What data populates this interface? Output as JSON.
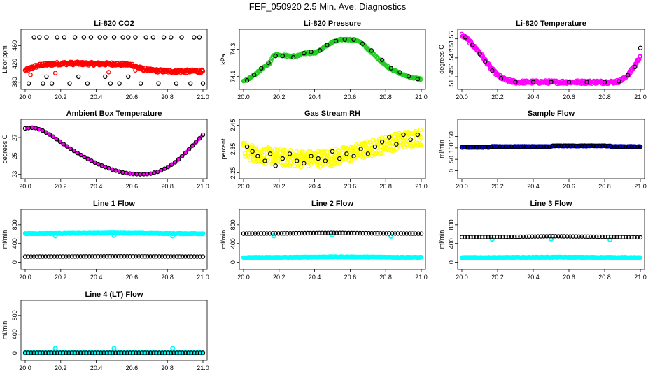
{
  "figure": {
    "title": "FEF_050920  2.5 Min. Ave. Diagnostics"
  },
  "colors": {
    "red": "#ff0000",
    "green": "#22cc22",
    "magenta": "#ff00ff",
    "yellow": "#ffff00",
    "blue": "#0000cc",
    "cyan": "#00ffff",
    "black": "#000000"
  },
  "chart_data": [
    {
      "id": "co2",
      "type": "scatter",
      "title": "Li-820 CO2",
      "ylabel": "Licor ppm",
      "xlim": [
        20.0,
        21.0
      ],
      "ylim": [
        372,
        488
      ],
      "xticks": [
        20.0,
        20.2,
        20.4,
        20.6,
        20.8,
        21.0
      ],
      "xtick_labels": [
        "20.0",
        "20.2",
        "20.4",
        "20.6",
        "20.8",
        "21.0"
      ],
      "yticks": [
        380,
        420,
        460
      ],
      "ytick_labels": [
        "380",
        "420",
        "460"
      ],
      "series": [
        {
          "style": "red-dense",
          "color": "red",
          "x": [
            20.0,
            20.05,
            20.1,
            20.2,
            20.3,
            20.4,
            20.5,
            20.6,
            20.65,
            20.7,
            20.8,
            20.9,
            21.0
          ],
          "y": [
            405,
            414,
            418,
            421,
            421,
            420,
            420,
            418,
            410,
            406,
            404,
            404,
            404
          ]
        },
        {
          "style": "black-open",
          "color": "black",
          "x": [
            20.05,
            20.08,
            20.12,
            20.18,
            20.22,
            20.28,
            20.33,
            20.37,
            20.42,
            20.45,
            20.5,
            20.55,
            20.58,
            20.62,
            20.68,
            20.72,
            20.78,
            20.82,
            20.88,
            20.95,
            20.98,
            20.02,
            20.1,
            20.15,
            20.25,
            20.35,
            20.48,
            20.53,
            20.65,
            20.75,
            20.85,
            20.93,
            21.0,
            20.12,
            20.3,
            20.45,
            20.58
          ],
          "y": [
            478,
            478,
            478,
            478,
            478,
            478,
            478,
            478,
            478,
            478,
            478,
            478,
            478,
            478,
            478,
            478,
            478,
            478,
            478,
            478,
            478,
            377,
            377,
            377,
            377,
            377,
            377,
            377,
            377,
            377,
            377,
            377,
            377,
            392,
            392,
            392,
            392
          ]
        }
      ]
    },
    {
      "id": "pressure",
      "type": "scatter",
      "title": "Li-820 Pressure",
      "ylabel": "kPa",
      "xlim": [
        20.0,
        21.0
      ],
      "ylim": [
        74.03,
        74.42
      ],
      "xticks": [
        20.0,
        20.2,
        20.4,
        20.6,
        20.8,
        21.0
      ],
      "xtick_labels": [
        "20.0",
        "20.2",
        "20.4",
        "20.6",
        "20.8",
        "21.0"
      ],
      "yticks": [
        74.1,
        74.3
      ],
      "ytick_labels": [
        "74.1",
        "74.3"
      ],
      "series": [
        {
          "style": "green-dense",
          "color": "green",
          "x": [
            20.0,
            20.05,
            20.1,
            20.15,
            20.17,
            20.2,
            20.25,
            20.3,
            20.33,
            20.36,
            20.4,
            20.45,
            20.5,
            20.55,
            20.6,
            20.65,
            20.7,
            20.75,
            20.8,
            20.85,
            20.9,
            20.95,
            21.0
          ],
          "y": [
            74.06,
            74.1,
            74.15,
            74.2,
            74.26,
            74.26,
            74.25,
            74.25,
            74.27,
            74.27,
            74.27,
            74.31,
            74.35,
            74.37,
            74.37,
            74.36,
            74.3,
            74.24,
            74.18,
            74.14,
            74.11,
            74.09,
            74.08
          ]
        },
        {
          "style": "black-open",
          "color": "black",
          "x": [
            20.02,
            20.06,
            20.1,
            20.14,
            20.18,
            20.22,
            20.28,
            20.34,
            20.38,
            20.43,
            20.47,
            20.52,
            20.57,
            20.62,
            20.67,
            20.72,
            20.78,
            20.83,
            20.88,
            20.93,
            20.98
          ],
          "y": [
            74.07,
            74.11,
            74.16,
            74.2,
            74.25,
            74.25,
            74.24,
            74.27,
            74.28,
            74.29,
            74.33,
            74.36,
            74.37,
            74.37,
            74.34,
            74.29,
            74.22,
            74.16,
            74.13,
            74.1,
            74.08
          ]
        }
      ]
    },
    {
      "id": "ltemp",
      "type": "scatter",
      "title": "Li-820 Temperature",
      "ylabel": "degrees C",
      "xlim": [
        20.0,
        21.0
      ],
      "ylim": [
        51.5438,
        51.5508
      ],
      "xticks": [
        20.0,
        20.2,
        20.4,
        20.6,
        20.8,
        21.0
      ],
      "xtick_labels": [
        "20.0",
        "20.2",
        "20.4",
        "20.6",
        "20.8",
        "21.0"
      ],
      "yticks": [
        51.545,
        51.5475,
        51.55
      ],
      "ytick_labels": [
        "51.545",
        "51.5475",
        "51.55"
      ],
      "series": [
        {
          "style": "magenta-dense",
          "color": "magenta",
          "x": [
            20.0,
            20.03,
            20.06,
            20.1,
            20.13,
            20.16,
            20.2,
            20.25,
            20.3,
            20.4,
            20.5,
            20.6,
            20.7,
            20.8,
            20.85,
            20.88,
            20.91,
            20.94,
            20.97,
            21.0
          ],
          "y": [
            51.5505,
            51.55,
            51.5492,
            51.5482,
            51.5472,
            51.5462,
            51.5452,
            51.5445,
            51.5443,
            51.5443,
            51.5443,
            51.5443,
            51.5443,
            51.5443,
            51.5443,
            51.5444,
            51.5448,
            51.5455,
            51.5465,
            51.5478
          ]
        },
        {
          "style": "black-open",
          "color": "black",
          "x": [
            20.02,
            20.06,
            20.1,
            20.13,
            20.17,
            20.22,
            20.3,
            20.4,
            20.5,
            20.6,
            20.7,
            20.8,
            20.88,
            20.93,
            20.97,
            21.0
          ],
          "y": [
            51.5502,
            51.5492,
            51.548,
            51.547,
            51.5458,
            51.5448,
            51.5443,
            51.5443,
            51.5443,
            51.5443,
            51.5443,
            51.5443,
            51.5444,
            51.5452,
            51.5463,
            51.5488
          ]
        }
      ]
    },
    {
      "id": "ambtemp",
      "type": "scatter",
      "title": "Ambient Box Temperature",
      "ylabel": "degrees C",
      "xlim": [
        20.0,
        21.0
      ],
      "ylim": [
        22.9,
        28.6
      ],
      "xticks": [
        20.0,
        20.2,
        20.4,
        20.6,
        20.8,
        21.0
      ],
      "xtick_labels": [
        "20.0",
        "20.2",
        "20.4",
        "20.6",
        "20.8",
        "21.0"
      ],
      "yticks": [
        23,
        25,
        27
      ],
      "ytick_labels": [
        "23",
        "25",
        "27"
      ],
      "series": [
        {
          "style": "magenta-line",
          "color": "magenta",
          "x": [
            20.0,
            20.05,
            20.1,
            20.15,
            20.2,
            20.25,
            20.3,
            20.35,
            20.4,
            20.45,
            20.5,
            20.55,
            20.6,
            20.65,
            20.7,
            20.75,
            20.8,
            20.85,
            20.9,
            20.95,
            21.0
          ],
          "y": [
            28.0,
            28.1,
            27.75,
            27.2,
            26.5,
            25.85,
            25.25,
            24.7,
            24.2,
            23.8,
            23.45,
            23.2,
            23.05,
            23.0,
            23.05,
            23.3,
            23.75,
            24.4,
            25.3,
            26.3,
            27.3
          ]
        },
        {
          "style": "black-open",
          "color": "black",
          "x": [
            20.0,
            20.05,
            20.1,
            20.15,
            20.2,
            20.25,
            20.3,
            20.35,
            20.4,
            20.45,
            20.5,
            20.55,
            20.6,
            20.65,
            20.7,
            20.75,
            20.8,
            20.85,
            20.9,
            20.95,
            21.0
          ],
          "y": [
            28.0,
            28.1,
            27.75,
            27.2,
            26.5,
            25.85,
            25.25,
            24.7,
            24.2,
            23.8,
            23.45,
            23.2,
            23.05,
            23.0,
            23.05,
            23.3,
            23.75,
            24.4,
            25.3,
            26.3,
            27.3
          ]
        }
      ]
    },
    {
      "id": "rh",
      "type": "scatter",
      "title": "Gas Stream RH",
      "ylabel": "percent",
      "xlim": [
        20.0,
        21.0
      ],
      "ylim": [
        2.24,
        2.46
      ],
      "xticks": [
        20.0,
        20.2,
        20.4,
        20.6,
        20.8,
        21.0
      ],
      "xtick_labels": [
        "20.0",
        "20.2",
        "20.4",
        "20.6",
        "20.8",
        "21.0"
      ],
      "yticks": [
        2.25,
        2.35,
        2.45
      ],
      "ytick_labels": [
        "2.25",
        "2.35",
        "2.45"
      ],
      "series": [
        {
          "style": "yellow-dense",
          "color": "yellow",
          "x": [
            20.0,
            20.1,
            20.2,
            20.3,
            20.4,
            20.5,
            20.6,
            20.7,
            20.8,
            20.9,
            21.0
          ],
          "y": [
            2.345,
            2.325,
            2.315,
            2.31,
            2.31,
            2.315,
            2.33,
            2.35,
            2.37,
            2.39,
            2.4
          ]
        },
        {
          "style": "black-open",
          "color": "black",
          "x": [
            20.02,
            20.05,
            20.08,
            20.12,
            20.15,
            20.18,
            20.22,
            20.26,
            20.3,
            20.34,
            20.38,
            20.42,
            20.46,
            20.5,
            20.54,
            20.58,
            20.62,
            20.66,
            20.7,
            20.74,
            20.78,
            20.82,
            20.86,
            20.9,
            20.94,
            20.98
          ],
          "y": [
            2.36,
            2.34,
            2.32,
            2.3,
            2.33,
            2.28,
            2.31,
            2.33,
            2.3,
            2.29,
            2.32,
            2.31,
            2.3,
            2.34,
            2.31,
            2.33,
            2.32,
            2.35,
            2.33,
            2.36,
            2.38,
            2.4,
            2.37,
            2.41,
            2.39,
            2.41
          ]
        }
      ]
    },
    {
      "id": "sampleflow",
      "type": "scatter",
      "title": "Sample Flow",
      "ylabel": "ml/min",
      "xlim": [
        20.0,
        21.0
      ],
      "ylim": [
        -20,
        210
      ],
      "xticks": [
        20.0,
        20.2,
        20.4,
        20.6,
        20.8,
        21.0
      ],
      "xtick_labels": [
        "20.0",
        "20.2",
        "20.4",
        "20.6",
        "20.8",
        "21.0"
      ],
      "yticks": [
        0,
        50,
        100,
        150
      ],
      "ytick_labels": [
        "0",
        "50",
        "100",
        "150"
      ],
      "series": [
        {
          "style": "blue-dense",
          "color": "blue",
          "x": [
            20.0,
            20.16,
            20.17,
            20.5,
            20.51,
            20.83,
            20.84,
            21.0
          ],
          "y": [
            103,
            103,
            106,
            106,
            109,
            109,
            106,
            106
          ]
        },
        {
          "style": "black-open",
          "color": "black",
          "x": [
            20.0,
            20.16,
            20.17,
            20.5,
            20.51,
            20.83,
            20.84,
            21.0
          ],
          "y": [
            103,
            103,
            106,
            106,
            109,
            109,
            106,
            106
          ]
        }
      ]
    },
    {
      "id": "line1",
      "type": "scatter",
      "title": "Line 1 Flow",
      "ylabel": "ml/min",
      "xlim": [
        20.0,
        21.0
      ],
      "ylim": [
        -80,
        1050
      ],
      "xticks": [
        20.0,
        20.2,
        20.4,
        20.6,
        20.8,
        21.0
      ],
      "xtick_labels": [
        "20.0",
        "20.2",
        "20.4",
        "20.6",
        "20.8",
        "21.0"
      ],
      "yticks": [
        0,
        400,
        800
      ],
      "ytick_labels": [
        "0",
        "400",
        "800"
      ],
      "series": [
        {
          "style": "cyan-dense",
          "color": "cyan",
          "x": [
            20.0,
            20.2,
            20.4,
            20.5,
            20.6,
            20.8,
            21.0
          ],
          "y": [
            610,
            615,
            620,
            625,
            620,
            612,
            610
          ]
        },
        {
          "style": "cyan-open",
          "color": "cyan",
          "x": [
            20.17,
            20.5,
            20.83
          ],
          "y": [
            560,
            570,
            560
          ]
        },
        {
          "style": "black-open",
          "color": "black",
          "x": [
            20.0,
            20.25,
            20.5,
            20.75,
            21.0
          ],
          "y": [
            120,
            122,
            125,
            123,
            120
          ]
        }
      ]
    },
    {
      "id": "line2",
      "type": "scatter",
      "title": "Line 2 Flow",
      "ylabel": "ml/min",
      "xlim": [
        20.0,
        21.0
      ],
      "ylim": [
        -80,
        1050
      ],
      "xticks": [
        20.0,
        20.2,
        20.4,
        20.6,
        20.8,
        21.0
      ],
      "xtick_labels": [
        "20.0",
        "20.2",
        "20.4",
        "20.6",
        "20.8",
        "21.0"
      ],
      "yticks": [
        0,
        400,
        800
      ],
      "ytick_labels": [
        "0",
        "400",
        "800"
      ],
      "series": [
        {
          "style": "cyan-dense",
          "color": "cyan",
          "x": [
            20.0,
            20.25,
            20.5,
            20.75,
            21.0
          ],
          "y": [
            100,
            105,
            115,
            110,
            105
          ]
        },
        {
          "style": "cyan-open",
          "color": "cyan",
          "x": [
            20.17,
            20.5,
            20.83
          ],
          "y": [
            560,
            580,
            555
          ]
        },
        {
          "style": "black-open",
          "color": "black",
          "x": [
            20.0,
            20.25,
            20.5,
            20.75,
            21.0
          ],
          "y": [
            610,
            615,
            625,
            615,
            610
          ]
        }
      ]
    },
    {
      "id": "line3",
      "type": "scatter",
      "title": "Line 3 Flow",
      "ylabel": "ml/min",
      "xlim": [
        20.0,
        21.0
      ],
      "ylim": [
        -80,
        1050
      ],
      "xticks": [
        20.0,
        20.2,
        20.4,
        20.6,
        20.8,
        21.0
      ],
      "xtick_labels": [
        "20.0",
        "20.2",
        "20.4",
        "20.6",
        "20.8",
        "21.0"
      ],
      "yticks": [
        0,
        400,
        800
      ],
      "ytick_labels": [
        "0",
        "400",
        "800"
      ],
      "series": [
        {
          "style": "cyan-dense",
          "color": "cyan",
          "x": [
            20.0,
            20.25,
            20.5,
            20.75,
            21.0
          ],
          "y": [
            100,
            102,
            108,
            104,
            100
          ]
        },
        {
          "style": "cyan-open",
          "color": "cyan",
          "x": [
            20.17,
            20.5,
            20.83
          ],
          "y": [
            490,
            495,
            480
          ]
        },
        {
          "style": "black-open",
          "color": "black",
          "x": [
            20.0,
            20.25,
            20.5,
            20.75,
            21.0
          ],
          "y": [
            535,
            540,
            555,
            545,
            530
          ]
        }
      ]
    },
    {
      "id": "line4",
      "type": "scatter",
      "title": "Line 4 (LT) Flow",
      "ylabel": "ml/min",
      "xlim": [
        20.0,
        21.0
      ],
      "ylim": [
        -80,
        1050
      ],
      "xticks": [
        20.0,
        20.2,
        20.4,
        20.6,
        20.8,
        21.0
      ],
      "xtick_labels": [
        "20.0",
        "20.2",
        "20.4",
        "20.6",
        "20.8",
        "21.0"
      ],
      "yticks": [
        0,
        400,
        800
      ],
      "ytick_labels": [
        "0",
        "400",
        "800"
      ],
      "series": [
        {
          "style": "cyan-dense",
          "color": "cyan",
          "x": [
            20.0,
            20.5,
            21.0
          ],
          "y": [
            5,
            5,
            5
          ]
        },
        {
          "style": "cyan-open",
          "color": "cyan",
          "x": [
            20.17,
            20.5,
            20.83
          ],
          "y": [
            100,
            100,
            100
          ]
        },
        {
          "style": "black-open",
          "color": "black",
          "x": [
            20.0,
            20.5,
            21.0
          ],
          "y": [
            2,
            2,
            2
          ]
        }
      ]
    }
  ]
}
